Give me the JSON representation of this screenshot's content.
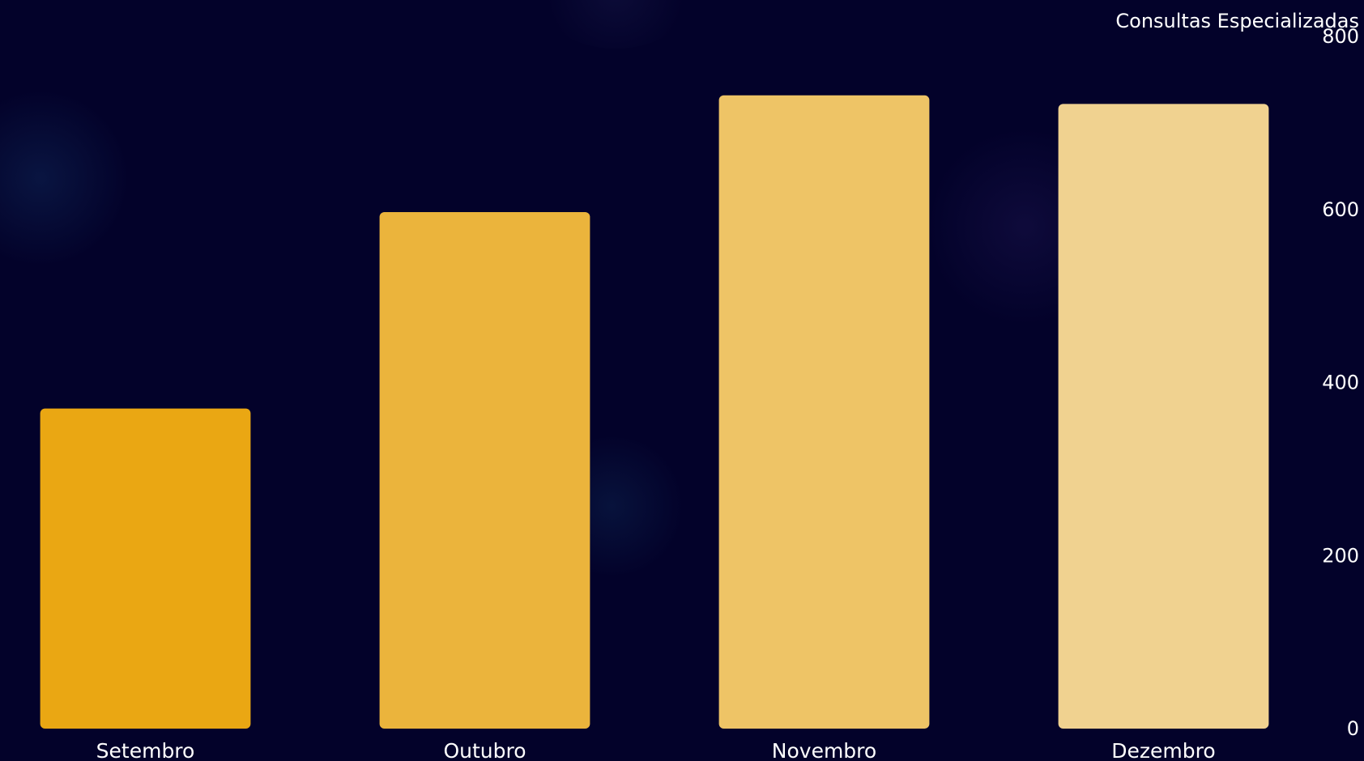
{
  "chart_data": {
    "type": "bar",
    "title": "Consultas Especializadas",
    "categories": [
      "Setembro",
      "Outubro",
      "Novembro",
      "Dezembro"
    ],
    "values": [
      370,
      597,
      732,
      722
    ],
    "ylim": [
      0,
      800
    ],
    "yticks": [
      0,
      200,
      400,
      600,
      800
    ],
    "xlabel": "",
    "ylabel": "",
    "grid": false,
    "legend": "none",
    "y_axis_side": "right",
    "colors": [
      "#eaa713",
      "#ebb43c",
      "#eec466",
      "#f0d290"
    ],
    "background": "#03022a",
    "text_color": "#ffffff"
  }
}
